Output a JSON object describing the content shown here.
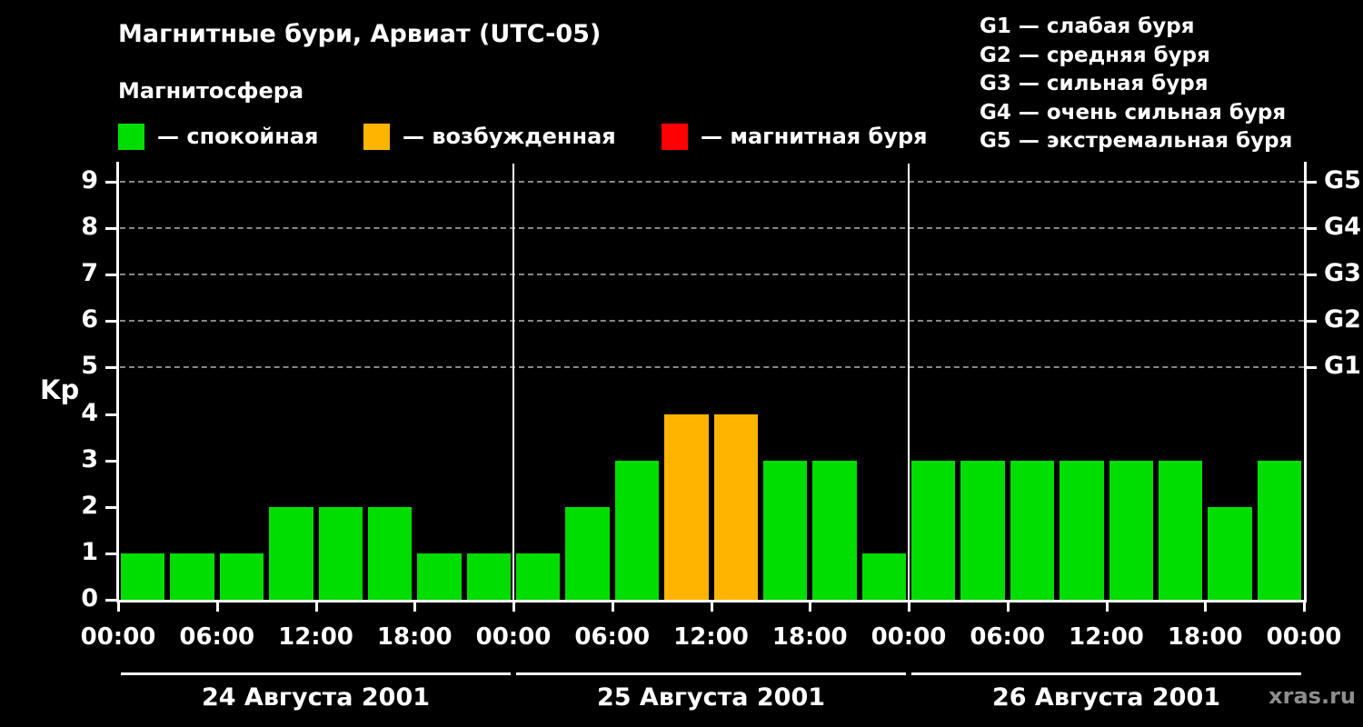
{
  "title": "Магнитные бури, Арвиат (UTC-05)",
  "subtitle": "Магнитосфера",
  "legend": {
    "items": [
      {
        "key": "quiet",
        "label": "— спокойная",
        "color": "#00dd00"
      },
      {
        "key": "excited",
        "label": "— возбужденная",
        "color": "#ffb400"
      },
      {
        "key": "storm",
        "label": "— магнитная буря",
        "color": "#ff0000"
      }
    ]
  },
  "storm_scale": [
    "G1 — слабая буря",
    "G2 — средняя буря",
    "G3 — сильная буря",
    "G4 — очень сильная буря",
    "G5 — экстремальная буря"
  ],
  "watermark": "xras.ru",
  "chart_data": {
    "type": "bar",
    "title": "Магнитные бури, Арвиат (UTC-05)",
    "ylabel": "Kp",
    "xlabel": "",
    "ylim": [
      0,
      9.4
    ],
    "y_ticks": [
      0,
      1,
      2,
      3,
      4,
      5,
      6,
      7,
      8,
      9
    ],
    "grid": "dashed horizontal lines at G storm levels",
    "legend_position": "top",
    "grid_levels": [
      {
        "value": 5,
        "label": "G1"
      },
      {
        "value": 6,
        "label": "G2"
      },
      {
        "value": 7,
        "label": "G3"
      },
      {
        "value": 8,
        "label": "G4"
      },
      {
        "value": 9,
        "label": "G5"
      }
    ],
    "x_ticks": [
      "00:00",
      "06:00",
      "12:00",
      "18:00",
      "00:00",
      "06:00",
      "12:00",
      "18:00",
      "00:00",
      "06:00",
      "12:00",
      "18:00",
      "00:00"
    ],
    "bar_interval_hours": 3,
    "days": [
      {
        "date": "24 Августа 2001",
        "values": [
          1,
          1,
          1,
          2,
          2,
          2,
          1,
          1
        ]
      },
      {
        "date": "25 Августа 2001",
        "values": [
          1,
          2,
          3,
          4,
          4,
          3,
          3,
          1
        ]
      },
      {
        "date": "26 Августа 2001",
        "values": [
          3,
          3,
          3,
          3,
          3,
          3,
          2,
          3
        ]
      }
    ],
    "colors": {
      "quiet": "#00dd00",
      "excited": "#ffb400",
      "storm": "#ff0000"
    },
    "thresholds": {
      "excited_min_kp": 4,
      "storm_min_kp": 5
    }
  }
}
